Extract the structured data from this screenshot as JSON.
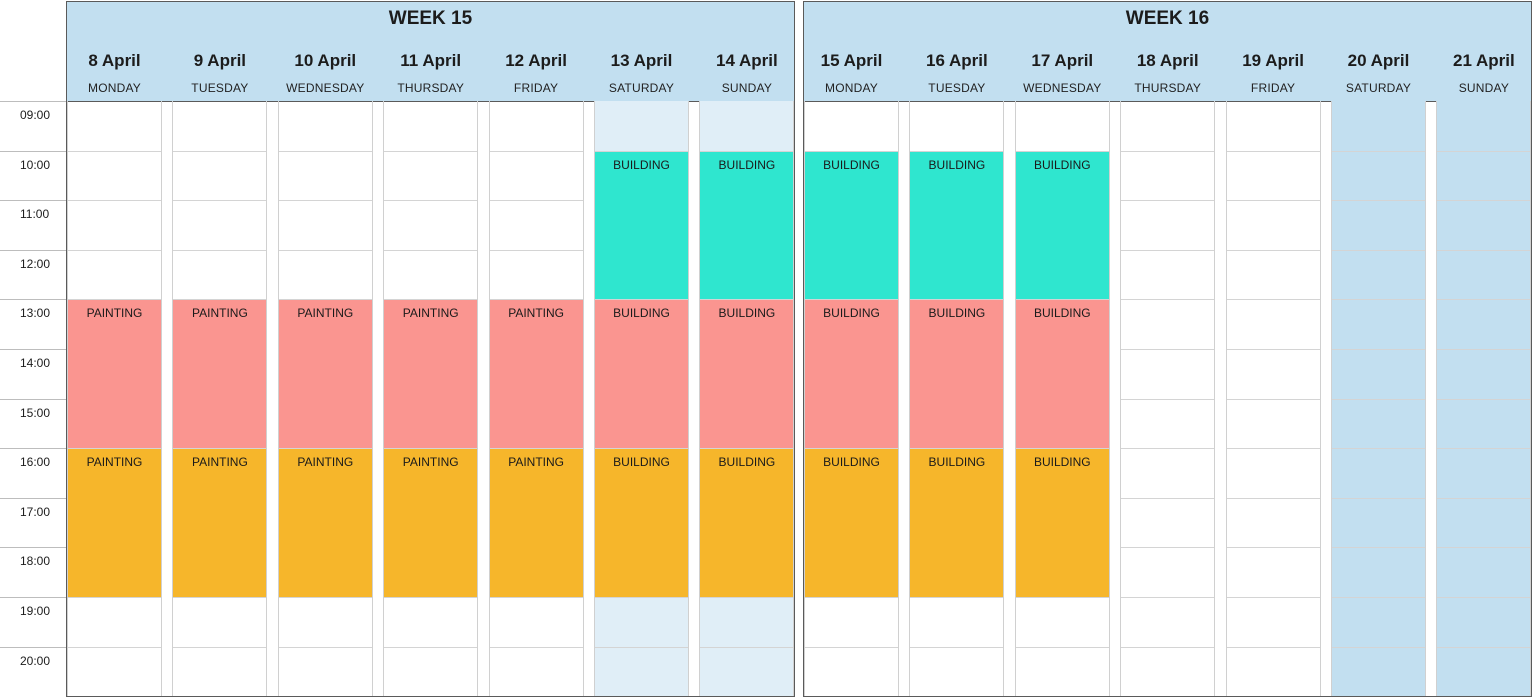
{
  "time_slots": [
    "09:00",
    "10:00",
    "11:00",
    "12:00",
    "13:00",
    "14:00",
    "15:00",
    "16:00",
    "17:00",
    "18:00",
    "19:00",
    "20:00"
  ],
  "weeks": [
    {
      "title": "WEEK 15",
      "days": [
        {
          "date": "8 April",
          "weekday": "MONDAY",
          "shade": "none",
          "events": [
            {
              "label": "PAINTING",
              "start": "13:00",
              "end": "16:00",
              "kind": "pm1"
            },
            {
              "label": "PAINTING",
              "start": "16:00",
              "end": "19:00",
              "kind": "pm2"
            }
          ]
        },
        {
          "date": "9 April",
          "weekday": "TUESDAY",
          "shade": "none",
          "events": [
            {
              "label": "PAINTING",
              "start": "13:00",
              "end": "16:00",
              "kind": "pm1"
            },
            {
              "label": "PAINTING",
              "start": "16:00",
              "end": "19:00",
              "kind": "pm2"
            }
          ]
        },
        {
          "date": "10 April",
          "weekday": "WEDNESDAY",
          "shade": "none",
          "events": [
            {
              "label": "PAINTING",
              "start": "13:00",
              "end": "16:00",
              "kind": "pm1"
            },
            {
              "label": "PAINTING",
              "start": "16:00",
              "end": "19:00",
              "kind": "pm2"
            }
          ]
        },
        {
          "date": "11 April",
          "weekday": "THURSDAY",
          "shade": "none",
          "events": [
            {
              "label": "PAINTING",
              "start": "13:00",
              "end": "16:00",
              "kind": "pm1"
            },
            {
              "label": "PAINTING",
              "start": "16:00",
              "end": "19:00",
              "kind": "pm2"
            }
          ]
        },
        {
          "date": "12 April",
          "weekday": "FRIDAY",
          "shade": "none",
          "events": [
            {
              "label": "PAINTING",
              "start": "13:00",
              "end": "16:00",
              "kind": "pm1"
            },
            {
              "label": "PAINTING",
              "start": "16:00",
              "end": "19:00",
              "kind": "pm2"
            }
          ]
        },
        {
          "date": "13 April",
          "weekday": "SATURDAY",
          "shade": "weekend",
          "events": [
            {
              "label": "BUILDING",
              "start": "10:00",
              "end": "13:00",
              "kind": "am"
            },
            {
              "label": "BUILDING",
              "start": "13:00",
              "end": "16:00",
              "kind": "pm1"
            },
            {
              "label": "BUILDING",
              "start": "16:00",
              "end": "19:00",
              "kind": "pm2"
            }
          ]
        },
        {
          "date": "14 April",
          "weekday": "SUNDAY",
          "shade": "weekend",
          "events": [
            {
              "label": "BUILDING",
              "start": "10:00",
              "end": "13:00",
              "kind": "am"
            },
            {
              "label": "BUILDING",
              "start": "13:00",
              "end": "16:00",
              "kind": "pm1"
            },
            {
              "label": "BUILDING",
              "start": "16:00",
              "end": "19:00",
              "kind": "pm2"
            }
          ]
        }
      ]
    },
    {
      "title": "WEEK 16",
      "days": [
        {
          "date": "15 April",
          "weekday": "MONDAY",
          "shade": "none",
          "events": [
            {
              "label": "BUILDING",
              "start": "10:00",
              "end": "13:00",
              "kind": "am"
            },
            {
              "label": "BUILDING",
              "start": "13:00",
              "end": "16:00",
              "kind": "pm1"
            },
            {
              "label": "BUILDING",
              "start": "16:00",
              "end": "19:00",
              "kind": "pm2"
            }
          ]
        },
        {
          "date": "16 April",
          "weekday": "TUESDAY",
          "shade": "none",
          "events": [
            {
              "label": "BUILDING",
              "start": "10:00",
              "end": "13:00",
              "kind": "am"
            },
            {
              "label": "BUILDING",
              "start": "13:00",
              "end": "16:00",
              "kind": "pm1"
            },
            {
              "label": "BUILDING",
              "start": "16:00",
              "end": "19:00",
              "kind": "pm2"
            }
          ]
        },
        {
          "date": "17 April",
          "weekday": "WEDNESDAY",
          "shade": "none",
          "events": [
            {
              "label": "BUILDING",
              "start": "10:00",
              "end": "13:00",
              "kind": "am"
            },
            {
              "label": "BUILDING",
              "start": "13:00",
              "end": "16:00",
              "kind": "pm1"
            },
            {
              "label": "BUILDING",
              "start": "16:00",
              "end": "19:00",
              "kind": "pm2"
            }
          ]
        },
        {
          "date": "18 April",
          "weekday": "THURSDAY",
          "shade": "none",
          "events": []
        },
        {
          "date": "19 April",
          "weekday": "FRIDAY",
          "shade": "none",
          "events": []
        },
        {
          "date": "20 April",
          "weekday": "SATURDAY",
          "shade": "blocked",
          "events": []
        },
        {
          "date": "21 April",
          "weekday": "SUNDAY",
          "shade": "blocked",
          "events": []
        }
      ]
    }
  ],
  "colors": {
    "header": "#c2dff0",
    "weekend_shade": "#e0eef7",
    "blocked_day": "#c2dff0",
    "building_morning": "#2fe6cf",
    "afternoon": "#fa9590",
    "evening": "#f6b62b"
  }
}
